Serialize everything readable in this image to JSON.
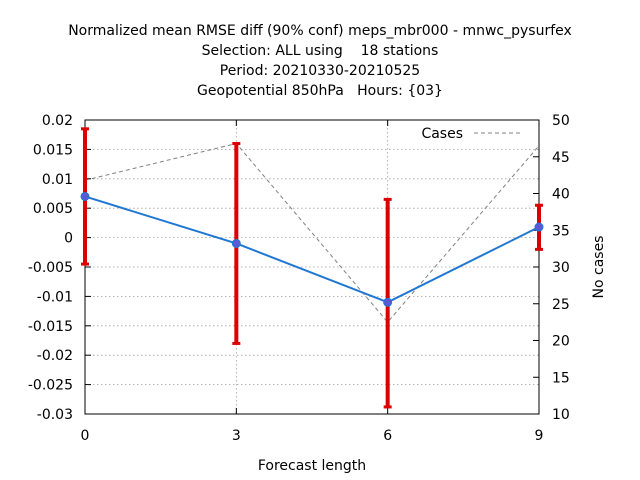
{
  "chart_data": {
    "type": "line",
    "title_lines": [
      "Normalized mean RMSE diff (90% conf) meps_mbr000 - mnwc_pysurfex",
      "Selection: ALL using    18 stations",
      "Period: 20210330-20210525",
      "Geopotential 850hPa   Hours: {03}"
    ],
    "xlabel": "Forecast length",
    "ylabel": "",
    "y2label": "No cases",
    "xlim": [
      0,
      9
    ],
    "ylim": [
      -0.03,
      0.02
    ],
    "y2lim": [
      10,
      50
    ],
    "x_ticks": [
      0,
      3,
      6,
      9
    ],
    "x_tick_labels": [
      "0",
      "3",
      "6",
      "9"
    ],
    "y_ticks": [
      -0.03,
      -0.025,
      -0.02,
      -0.015,
      -0.01,
      -0.005,
      0,
      0.005,
      0.01,
      0.015,
      0.02
    ],
    "y_tick_labels": [
      "-0.03",
      "-0.025",
      "-0.02",
      "-0.015",
      "-0.01",
      "-0.005",
      "0",
      "0.005",
      "0.01",
      "0.015",
      "0.02"
    ],
    "y2_ticks": [
      10,
      15,
      20,
      25,
      30,
      35,
      40,
      45,
      50
    ],
    "y2_tick_labels": [
      "10",
      "15",
      "20",
      "25",
      "30",
      "35",
      "40",
      "45",
      "50"
    ],
    "grid": true,
    "legend_position": "top-right",
    "series": [
      {
        "x": [
          0,
          3,
          6,
          9
        ],
        "values": [
          0.007,
          -0.001,
          -0.011,
          0.0018
        ],
        "err_low": [
          -0.0045,
          -0.018,
          -0.0288,
          -0.002
        ],
        "err_high": [
          0.0185,
          0.016,
          0.0065,
          0.0055
        ],
        "color": "#1f77d4",
        "marker_color": "#5a5ad6",
        "err_color": "#dd0000",
        "axis": "left"
      },
      {
        "name": "Cases",
        "x": [
          0,
          3,
          6,
          9
        ],
        "values": [
          41.8,
          46.8,
          22.5,
          46.5
        ],
        "color": "#808080",
        "dashed": true,
        "axis": "right"
      }
    ]
  }
}
